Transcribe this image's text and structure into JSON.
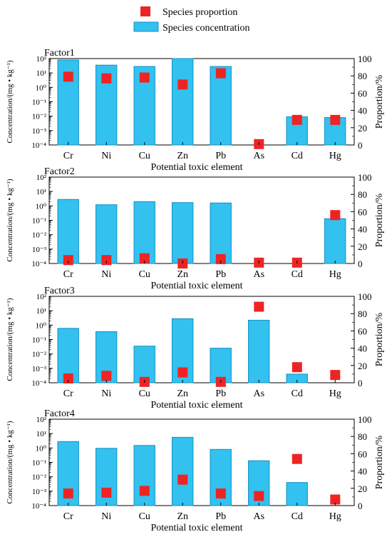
{
  "legend": {
    "proportion_label": "Species proportion",
    "concentration_label": "Species concentration",
    "placement": "top-center"
  },
  "colors": {
    "bar_fill": "#33c1f0",
    "bar_stroke": "#1a8fc0",
    "marker_fill": "#ee2424"
  },
  "chart_data": [
    {
      "type": "bar",
      "panel_label": "Factor1",
      "categories": [
        "Cr",
        "Ni",
        "Cu",
        "Zn",
        "Pb",
        "As",
        "Cd",
        "Hg"
      ],
      "xlabel": "Potential toxic element",
      "ylabel_left": "Concentration/(mg • kg⁻¹)",
      "ylabel_right": "Proportion/%",
      "y_left_scale": "log",
      "y_left_ticks": [
        "10⁻⁴",
        "10⁻³",
        "10⁻²",
        "10⁻¹",
        "10⁰",
        "10¹",
        "10²"
      ],
      "y_left_range": [
        0.0001,
        100
      ],
      "y_right_range": [
        0,
        100
      ],
      "y_right_ticks": [
        "0",
        "20",
        "40",
        "60",
        "80",
        "100"
      ],
      "series": [
        {
          "name": "Species concentration",
          "kind": "bar",
          "values": [
            80,
            35,
            28,
            100,
            28,
            null,
            0.009,
            0.008
          ]
        },
        {
          "name": "Species proportion",
          "kind": "marker",
          "values": [
            79,
            77,
            78,
            70,
            83,
            1,
            29,
            29
          ]
        }
      ]
    },
    {
      "type": "bar",
      "panel_label": "Factor2",
      "categories": [
        "Cr",
        "Ni",
        "Cu",
        "Zn",
        "Pb",
        "As",
        "Cd",
        "Hg"
      ],
      "xlabel": "Potential toxic element",
      "ylabel_left": "Concentration/(mg • kg⁻¹)",
      "ylabel_right": "Proportion/%",
      "y_left_scale": "log",
      "y_left_ticks": [
        "10⁻⁴",
        "10⁻³",
        "10⁻²",
        "10⁻¹",
        "10⁰",
        "10¹",
        "10²"
      ],
      "y_left_range": [
        0.0001,
        100
      ],
      "y_right_range": [
        0,
        100
      ],
      "y_right_ticks": [
        "0",
        "20",
        "40",
        "60",
        "80",
        "100"
      ],
      "series": [
        {
          "name": "Species concentration",
          "kind": "bar",
          "values": [
            2.8,
            1.2,
            2.0,
            1.7,
            1.6,
            null,
            null,
            0.13
          ]
        },
        {
          "name": "Species proportion",
          "kind": "marker",
          "values": [
            4,
            4,
            6,
            0,
            5,
            1,
            1,
            56
          ]
        }
      ]
    },
    {
      "type": "bar",
      "panel_label": "Factor3",
      "categories": [
        "Cr",
        "Ni",
        "Cu",
        "Zn",
        "Pb",
        "As",
        "Cd",
        "Hg"
      ],
      "xlabel": "Potential toxic element",
      "ylabel_left": "Concentration/(mg • kg⁻¹)",
      "ylabel_right": "Proportion/%",
      "y_left_scale": "log",
      "y_left_ticks": [
        "10⁻⁴",
        "10⁻³",
        "10⁻²",
        "10⁻¹",
        "10⁰",
        "10¹",
        "10²"
      ],
      "y_left_range": [
        0.0001,
        100
      ],
      "y_right_range": [
        0,
        100
      ],
      "y_right_ticks": [
        "0",
        "20",
        "40",
        "60",
        "80",
        "100"
      ],
      "series": [
        {
          "name": "Species concentration",
          "kind": "bar",
          "values": [
            0.6,
            0.35,
            0.035,
            2.8,
            0.025,
            2.2,
            0.0004,
            null
          ]
        },
        {
          "name": "Species proportion",
          "kind": "marker",
          "values": [
            5,
            8,
            1,
            12,
            1,
            88,
            18,
            9
          ]
        }
      ]
    },
    {
      "type": "bar",
      "panel_label": "Factor4",
      "categories": [
        "Cr",
        "Ni",
        "Cu",
        "Zn",
        "Pb",
        "As",
        "Cd",
        "Hg"
      ],
      "xlabel": "Potential toxic element",
      "ylabel_left": "Concentration/(mg • kg⁻¹)",
      "ylabel_right": "Proportion/%",
      "y_left_scale": "log",
      "y_left_ticks": [
        "10⁻⁴",
        "10⁻³",
        "10⁻²",
        "10⁻¹",
        "10⁰",
        "10¹",
        "10²"
      ],
      "y_left_range": [
        0.0001,
        100
      ],
      "y_right_range": [
        0,
        100
      ],
      "y_right_ticks": [
        "0",
        "20",
        "40",
        "60",
        "80",
        "100"
      ],
      "series": [
        {
          "name": "Species concentration",
          "kind": "bar",
          "values": [
            2.8,
            0.95,
            1.5,
            5.5,
            0.8,
            0.13,
            0.004,
            null
          ]
        },
        {
          "name": "Species proportion",
          "kind": "marker",
          "values": [
            14,
            15,
            17,
            30,
            14,
            11,
            54,
            7
          ]
        }
      ]
    }
  ]
}
